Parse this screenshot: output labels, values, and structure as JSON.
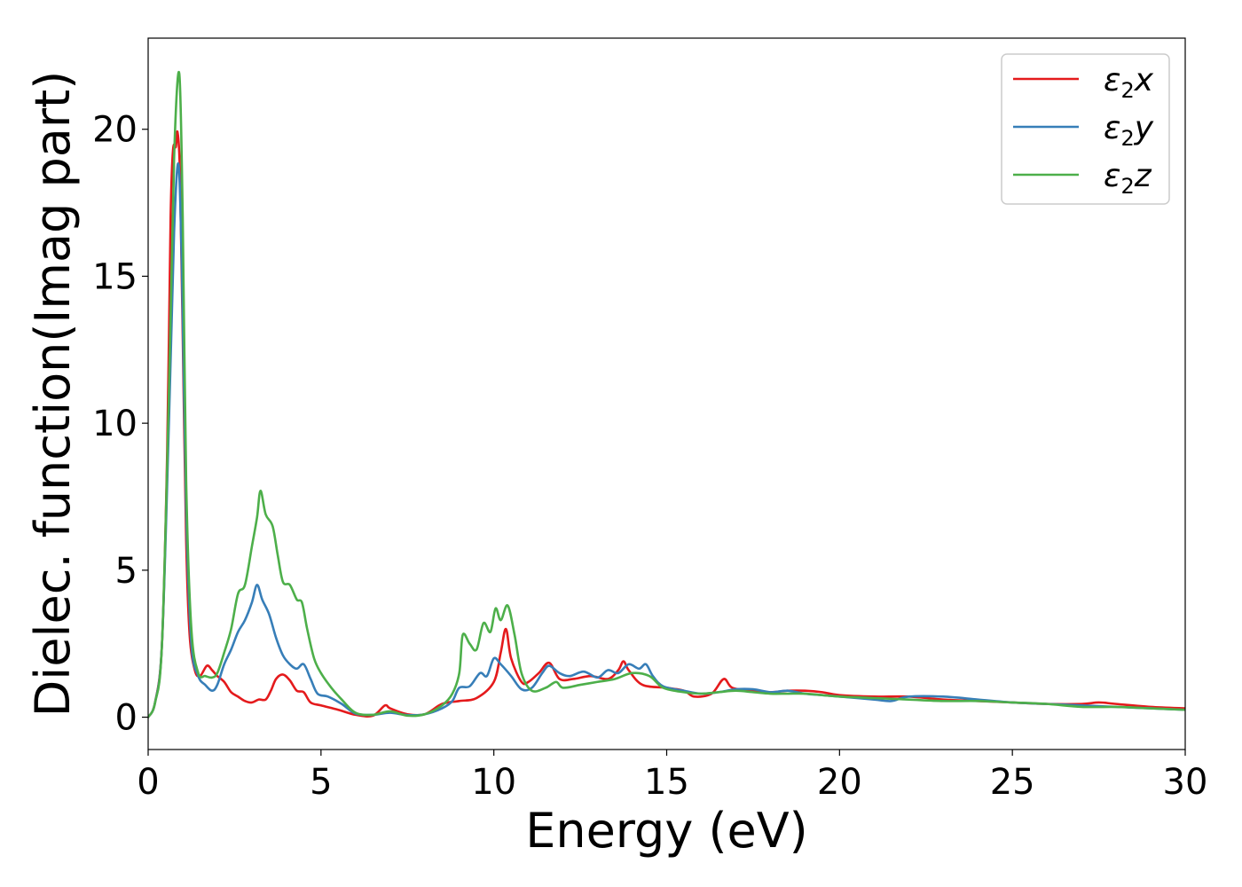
{
  "chart_data": {
    "type": "line",
    "title": "",
    "xlabel": "Energy (eV)",
    "ylabel": "Dielec. function(Imag part)",
    "xlim": [
      0,
      30
    ],
    "ylim": [
      -1.1,
      23.1
    ],
    "xticks": [
      0,
      5,
      10,
      15,
      20,
      25,
      30
    ],
    "yticks": [
      0,
      5,
      10,
      15,
      20
    ],
    "grid": false,
    "legend_position": "top-right",
    "series": [
      {
        "name": "ε2x",
        "symbol": "ε",
        "subscript": "2",
        "axis": "x",
        "color": "#e41a1c",
        "points": [
          [
            0,
            0
          ],
          [
            0.2,
            0.5
          ],
          [
            0.4,
            2.5
          ],
          [
            0.55,
            9
          ],
          [
            0.65,
            17
          ],
          [
            0.72,
            19.3
          ],
          [
            0.8,
            19.4
          ],
          [
            0.85,
            19.9
          ],
          [
            0.92,
            18.5
          ],
          [
            1.0,
            13
          ],
          [
            1.1,
            6
          ],
          [
            1.2,
            2.8
          ],
          [
            1.35,
            1.6
          ],
          [
            1.5,
            1.4
          ],
          [
            1.7,
            1.75
          ],
          [
            1.85,
            1.6
          ],
          [
            2.0,
            1.4
          ],
          [
            2.2,
            1.2
          ],
          [
            2.4,
            0.85
          ],
          [
            2.6,
            0.7
          ],
          [
            2.8,
            0.55
          ],
          [
            3.0,
            0.5
          ],
          [
            3.2,
            0.6
          ],
          [
            3.4,
            0.6
          ],
          [
            3.55,
            0.9
          ],
          [
            3.7,
            1.3
          ],
          [
            3.9,
            1.45
          ],
          [
            4.1,
            1.25
          ],
          [
            4.3,
            0.9
          ],
          [
            4.5,
            0.85
          ],
          [
            4.7,
            0.5
          ],
          [
            5.0,
            0.4
          ],
          [
            5.5,
            0.25
          ],
          [
            6.0,
            0.08
          ],
          [
            6.5,
            0.05
          ],
          [
            6.85,
            0.4
          ],
          [
            7.0,
            0.3
          ],
          [
            7.5,
            0.1
          ],
          [
            8.0,
            0.1
          ],
          [
            8.5,
            0.45
          ],
          [
            9.0,
            0.55
          ],
          [
            9.5,
            0.65
          ],
          [
            10.0,
            1.2
          ],
          [
            10.2,
            2.2
          ],
          [
            10.35,
            3.0
          ],
          [
            10.5,
            2.0
          ],
          [
            10.8,
            1.2
          ],
          [
            11.0,
            1.2
          ],
          [
            11.3,
            1.5
          ],
          [
            11.6,
            1.85
          ],
          [
            11.9,
            1.3
          ],
          [
            12.3,
            1.3
          ],
          [
            12.8,
            1.4
          ],
          [
            13.3,
            1.3
          ],
          [
            13.6,
            1.6
          ],
          [
            13.75,
            1.9
          ],
          [
            13.9,
            1.6
          ],
          [
            14.3,
            1.1
          ],
          [
            15.0,
            1.0
          ],
          [
            15.5,
            0.9
          ],
          [
            15.8,
            0.7
          ],
          [
            16.3,
            0.8
          ],
          [
            16.65,
            1.3
          ],
          [
            16.9,
            1.0
          ],
          [
            17.5,
            0.9
          ],
          [
            18.0,
            0.85
          ],
          [
            18.5,
            0.9
          ],
          [
            19.0,
            0.9
          ],
          [
            19.5,
            0.85
          ],
          [
            20.0,
            0.75
          ],
          [
            21.0,
            0.7
          ],
          [
            22.0,
            0.7
          ],
          [
            23.0,
            0.6
          ],
          [
            24.0,
            0.55
          ],
          [
            25.0,
            0.5
          ],
          [
            26.0,
            0.45
          ],
          [
            27.0,
            0.45
          ],
          [
            27.5,
            0.5
          ],
          [
            28.0,
            0.45
          ],
          [
            29.0,
            0.35
          ],
          [
            30.0,
            0.3
          ]
        ]
      },
      {
        "name": "ε2y",
        "symbol": "ε",
        "subscript": "2",
        "axis": "y",
        "color": "#377eb8",
        "points": [
          [
            0,
            0
          ],
          [
            0.2,
            0.5
          ],
          [
            0.4,
            2.5
          ],
          [
            0.6,
            10
          ],
          [
            0.75,
            16.5
          ],
          [
            0.88,
            18.8
          ],
          [
            0.98,
            15
          ],
          [
            1.1,
            7
          ],
          [
            1.25,
            2.5
          ],
          [
            1.45,
            1.4
          ],
          [
            1.65,
            1.1
          ],
          [
            1.85,
            0.9
          ],
          [
            2.0,
            1.1
          ],
          [
            2.2,
            1.8
          ],
          [
            2.4,
            2.3
          ],
          [
            2.6,
            2.9
          ],
          [
            2.8,
            3.3
          ],
          [
            3.0,
            3.9
          ],
          [
            3.15,
            4.5
          ],
          [
            3.3,
            4.0
          ],
          [
            3.5,
            3.5
          ],
          [
            3.7,
            2.7
          ],
          [
            3.9,
            2.1
          ],
          [
            4.1,
            1.8
          ],
          [
            4.3,
            1.65
          ],
          [
            4.5,
            1.8
          ],
          [
            4.7,
            1.3
          ],
          [
            4.9,
            0.8
          ],
          [
            5.2,
            0.7
          ],
          [
            5.6,
            0.45
          ],
          [
            6.0,
            0.12
          ],
          [
            6.5,
            0.08
          ],
          [
            7.0,
            0.15
          ],
          [
            7.5,
            0.07
          ],
          [
            8.0,
            0.1
          ],
          [
            8.5,
            0.3
          ],
          [
            8.8,
            0.55
          ],
          [
            9.0,
            1.0
          ],
          [
            9.3,
            1.05
          ],
          [
            9.6,
            1.5
          ],
          [
            9.8,
            1.4
          ],
          [
            10.0,
            2.0
          ],
          [
            10.2,
            1.8
          ],
          [
            10.5,
            1.4
          ],
          [
            10.8,
            0.95
          ],
          [
            11.1,
            1.0
          ],
          [
            11.4,
            1.5
          ],
          [
            11.6,
            1.75
          ],
          [
            11.9,
            1.5
          ],
          [
            12.2,
            1.4
          ],
          [
            12.6,
            1.55
          ],
          [
            13.0,
            1.35
          ],
          [
            13.3,
            1.6
          ],
          [
            13.6,
            1.5
          ],
          [
            13.9,
            1.8
          ],
          [
            14.2,
            1.65
          ],
          [
            14.4,
            1.8
          ],
          [
            14.6,
            1.4
          ],
          [
            14.9,
            1.05
          ],
          [
            15.5,
            0.9
          ],
          [
            16.0,
            0.8
          ],
          [
            16.5,
            0.85
          ],
          [
            17.0,
            0.95
          ],
          [
            17.5,
            0.95
          ],
          [
            18.0,
            0.85
          ],
          [
            18.5,
            0.9
          ],
          [
            19.0,
            0.8
          ],
          [
            19.5,
            0.75
          ],
          [
            20.0,
            0.7
          ],
          [
            21.0,
            0.6
          ],
          [
            21.5,
            0.55
          ],
          [
            22.0,
            0.7
          ],
          [
            23.0,
            0.7
          ],
          [
            24.0,
            0.6
          ],
          [
            25.0,
            0.5
          ],
          [
            26.0,
            0.45
          ],
          [
            27.0,
            0.4
          ],
          [
            28.0,
            0.35
          ],
          [
            29.0,
            0.3
          ],
          [
            30.0,
            0.25
          ]
        ]
      },
      {
        "name": "ε2z",
        "symbol": "ε",
        "subscript": "2",
        "axis": "z",
        "color": "#4daf4a",
        "points": [
          [
            0,
            0
          ],
          [
            0.2,
            0.5
          ],
          [
            0.4,
            2.5
          ],
          [
            0.6,
            11
          ],
          [
            0.75,
            19
          ],
          [
            0.9,
            21.9
          ],
          [
            1.0,
            17
          ],
          [
            1.1,
            8
          ],
          [
            1.25,
            3
          ],
          [
            1.45,
            1.5
          ],
          [
            1.65,
            1.4
          ],
          [
            1.85,
            1.35
          ],
          [
            2.0,
            1.5
          ],
          [
            2.2,
            2.2
          ],
          [
            2.4,
            3
          ],
          [
            2.6,
            4.2
          ],
          [
            2.8,
            4.5
          ],
          [
            3.0,
            5.8
          ],
          [
            3.15,
            6.8
          ],
          [
            3.25,
            7.7
          ],
          [
            3.4,
            6.9
          ],
          [
            3.6,
            6.5
          ],
          [
            3.75,
            5.5
          ],
          [
            3.9,
            4.6
          ],
          [
            4.1,
            4.5
          ],
          [
            4.3,
            4.0
          ],
          [
            4.45,
            3.9
          ],
          [
            4.6,
            3.0
          ],
          [
            4.8,
            2.0
          ],
          [
            5.0,
            1.5
          ],
          [
            5.3,
            1.0
          ],
          [
            5.6,
            0.6
          ],
          [
            6.0,
            0.15
          ],
          [
            6.5,
            0.08
          ],
          [
            7.0,
            0.2
          ],
          [
            7.5,
            0.05
          ],
          [
            8.0,
            0.1
          ],
          [
            8.5,
            0.4
          ],
          [
            8.8,
            0.8
          ],
          [
            9.0,
            1.5
          ],
          [
            9.1,
            2.8
          ],
          [
            9.3,
            2.5
          ],
          [
            9.5,
            2.3
          ],
          [
            9.7,
            3.2
          ],
          [
            9.9,
            2.9
          ],
          [
            10.05,
            3.7
          ],
          [
            10.2,
            3.3
          ],
          [
            10.4,
            3.8
          ],
          [
            10.6,
            2.8
          ],
          [
            10.8,
            1.5
          ],
          [
            11.1,
            0.9
          ],
          [
            11.5,
            1.0
          ],
          [
            11.8,
            1.2
          ],
          [
            12.0,
            1.0
          ],
          [
            12.5,
            1.1
          ],
          [
            13.0,
            1.2
          ],
          [
            13.5,
            1.3
          ],
          [
            14.0,
            1.5
          ],
          [
            14.5,
            1.4
          ],
          [
            14.9,
            1.0
          ],
          [
            15.5,
            0.85
          ],
          [
            16.0,
            0.8
          ],
          [
            16.5,
            0.85
          ],
          [
            17.0,
            0.9
          ],
          [
            17.5,
            0.85
          ],
          [
            18.0,
            0.8
          ],
          [
            18.5,
            0.8
          ],
          [
            19.0,
            0.8
          ],
          [
            19.5,
            0.75
          ],
          [
            20.0,
            0.7
          ],
          [
            21.0,
            0.65
          ],
          [
            22.0,
            0.6
          ],
          [
            23.0,
            0.55
          ],
          [
            24.0,
            0.55
          ],
          [
            25.0,
            0.5
          ],
          [
            26.0,
            0.45
          ],
          [
            27.0,
            0.35
          ],
          [
            28.0,
            0.35
          ],
          [
            29.0,
            0.3
          ],
          [
            30.0,
            0.25
          ]
        ]
      }
    ]
  }
}
